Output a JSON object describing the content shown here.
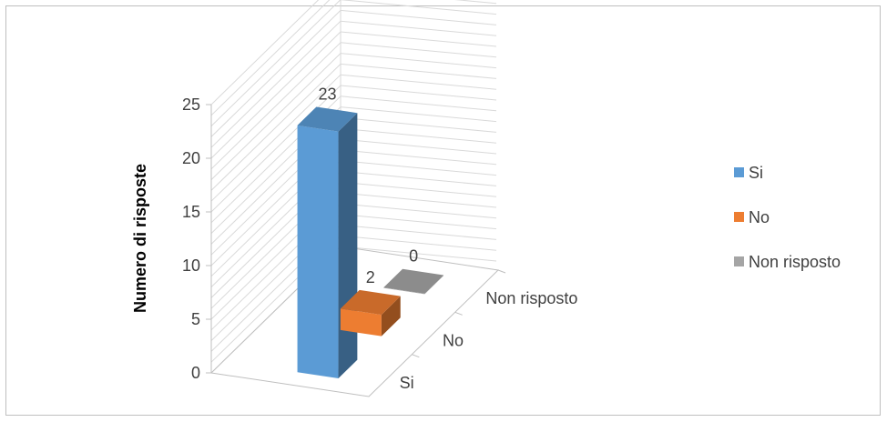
{
  "chart_data": {
    "type": "bar",
    "style": "3d-column",
    "categories": [
      "Si",
      "No",
      "Non risposto"
    ],
    "values": [
      23,
      2,
      0
    ],
    "colors": [
      "#5b9bd5",
      "#ed7d31",
      "#a5a5a5"
    ],
    "data_labels": [
      "23",
      "2",
      "0"
    ],
    "ylabel": "Numero di risposte",
    "xlabel": "",
    "ylim": [
      0,
      25
    ],
    "yticks": [
      "0",
      "5",
      "10",
      "15",
      "20",
      "25"
    ],
    "grid": true,
    "legend": {
      "position": "right",
      "entries": [
        "Si",
        "No",
        "Non risposto"
      ]
    }
  }
}
